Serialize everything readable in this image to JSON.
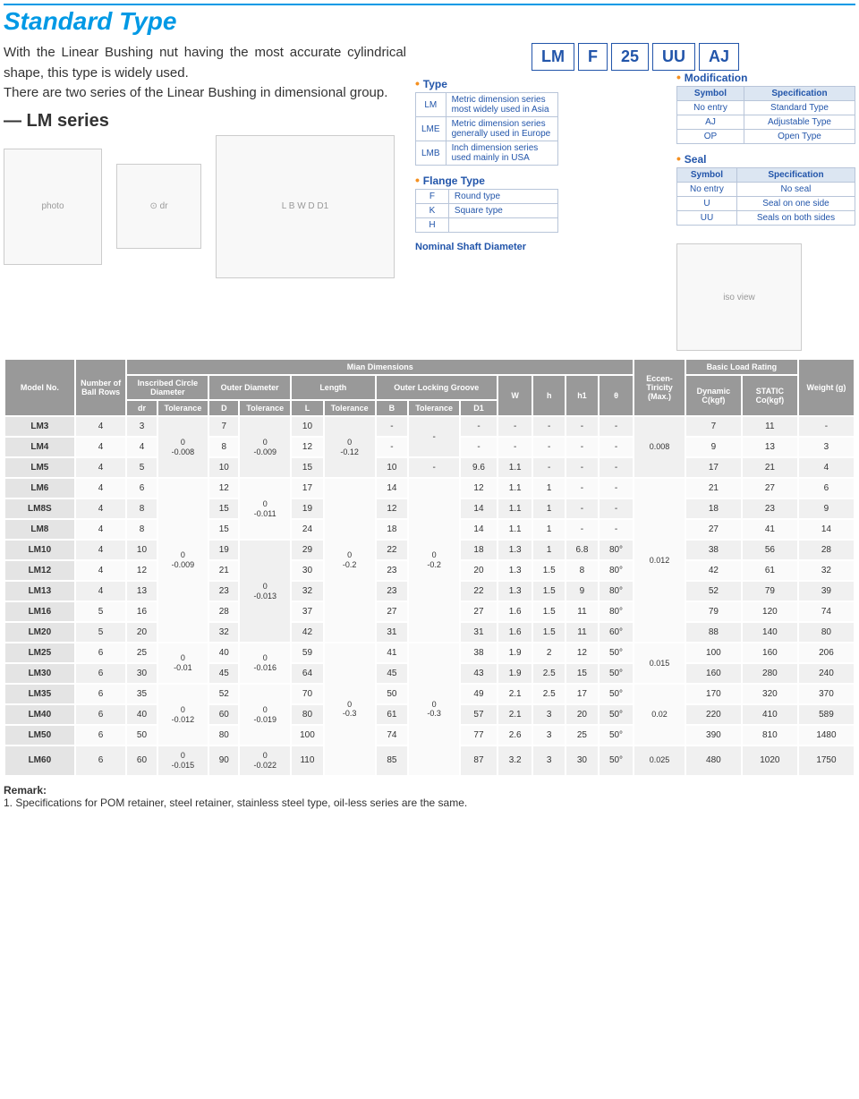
{
  "title": "Standard Type",
  "intro_p1": "With the Linear Bushing nut having the most accurate cylindrical shape, this type is widely used.",
  "intro_p2": "There are two series of the Linear Bushing in dimensional group.",
  "series_label": "— LM series",
  "code_parts": [
    "LM",
    "F",
    "25",
    "UU",
    "AJ"
  ],
  "type_legend": {
    "title": "Type",
    "rows": [
      [
        "LM",
        "Metric dimension series most widely used in Asia"
      ],
      [
        "LME",
        "Metric dimension series generally used in Europe"
      ],
      [
        "LMB",
        "Inch dimension series used mainly in USA"
      ]
    ]
  },
  "flange_legend": {
    "title": "Flange Type",
    "rows": [
      [
        "F",
        "Round type"
      ],
      [
        "K",
        "Square type"
      ],
      [
        "H",
        ""
      ]
    ]
  },
  "nominal_label": "Nominal Shaft Diameter",
  "mod_legend": {
    "title": "Modification",
    "cols": [
      "Symbol",
      "Specification"
    ],
    "rows": [
      [
        "No entry",
        "Standard Type"
      ],
      [
        "AJ",
        "Adjustable Type"
      ],
      [
        "OP",
        "Open Type"
      ]
    ]
  },
  "seal_legend": {
    "title": "Seal",
    "cols": [
      "Symbol",
      "Specification"
    ],
    "rows": [
      [
        "No entry",
        "No seal"
      ],
      [
        "U",
        "Seal on one side"
      ],
      [
        "UU",
        "Seals on both sides"
      ]
    ]
  },
  "spec_headers": {
    "model": "Model No.",
    "rows": "Number of Ball Rows",
    "main": "Mian Dimensions",
    "inscribed": "Inscribed Circle Diameter",
    "outer_d": "Outer Diameter",
    "length": "Length",
    "groove": "Outer Locking Groove",
    "dr": "dr",
    "tol": "Tolerance",
    "D": "D",
    "L": "L",
    "B": "B",
    "D1": "D1",
    "W": "W",
    "h": "h",
    "h1": "h1",
    "theta": "θ",
    "ecc": "Eccen-Tiricity (Max.)",
    "load": "Basic Load Rating",
    "dyn": "Dynamic C(kgf)",
    "stat": "STATIC Co(kgf)",
    "weight": "Weight (g)"
  },
  "tolerances": {
    "dr_1": "0\n-0.008",
    "dr_2": "0\n-0.009",
    "dr_3": "0\n-0.01",
    "dr_4": "0\n-0.012",
    "dr_5": "0\n-0.015",
    "D_1": "0\n-0.009",
    "D_2": "0\n-0.011",
    "D_3": "0\n-0.013",
    "D_4": "0\n-0.016",
    "D_5": "0\n-0.019",
    "D_6": "0\n-0.022",
    "L_1": "0\n-0.12",
    "L_2": "0\n-0.2",
    "L_3": "0\n-0.3",
    "B_1": "0\n-0.2",
    "B_2": "0\n-0.3",
    "ecc_1": "0.008",
    "ecc_2": "0.012",
    "ecc_3": "0.015",
    "ecc_4": "0.02",
    "ecc_5": "0.025"
  },
  "spec_rows": [
    {
      "model": "LM3",
      "balls": "4",
      "dr": "3",
      "D": "7",
      "L": "10",
      "B": "-",
      "D1": "-",
      "W": "-",
      "h": "-",
      "h1": "-",
      "theta": "-",
      "dyn": "7",
      "stat": "11",
      "wt": "-"
    },
    {
      "model": "LM4",
      "balls": "4",
      "dr": "4",
      "D": "8",
      "L": "12",
      "B": "-",
      "D1": "-",
      "W": "-",
      "h": "-",
      "h1": "-",
      "theta": "-",
      "dyn": "9",
      "stat": "13",
      "wt": "3"
    },
    {
      "model": "LM5",
      "balls": "4",
      "dr": "5",
      "D": "10",
      "L": "15",
      "B": "10",
      "D1": "9.6",
      "W": "1.1",
      "h": "-",
      "h1": "-",
      "theta": "-",
      "dyn": "17",
      "stat": "21",
      "wt": "4"
    },
    {
      "model": "LM6",
      "balls": "4",
      "dr": "6",
      "D": "12",
      "L": "17",
      "B": "14",
      "D1": "12",
      "W": "1.1",
      "h": "1",
      "h1": "-",
      "theta": "-",
      "dyn": "21",
      "stat": "27",
      "wt": "6"
    },
    {
      "model": "LM8S",
      "balls": "4",
      "dr": "8",
      "D": "15",
      "L": "19",
      "B": "12",
      "D1": "14",
      "W": "1.1",
      "h": "1",
      "h1": "-",
      "theta": "-",
      "dyn": "18",
      "stat": "23",
      "wt": "9"
    },
    {
      "model": "LM8",
      "balls": "4",
      "dr": "8",
      "D": "15",
      "L": "24",
      "B": "18",
      "D1": "14",
      "W": "1.1",
      "h": "1",
      "h1": "-",
      "theta": "-",
      "dyn": "27",
      "stat": "41",
      "wt": "14"
    },
    {
      "model": "LM10",
      "balls": "4",
      "dr": "10",
      "D": "19",
      "L": "29",
      "B": "22",
      "D1": "18",
      "W": "1.3",
      "h": "1",
      "h1": "6.8",
      "theta": "80°",
      "dyn": "38",
      "stat": "56",
      "wt": "28"
    },
    {
      "model": "LM12",
      "balls": "4",
      "dr": "12",
      "D": "21",
      "L": "30",
      "B": "23",
      "D1": "20",
      "W": "1.3",
      "h": "1.5",
      "h1": "8",
      "theta": "80°",
      "dyn": "42",
      "stat": "61",
      "wt": "32"
    },
    {
      "model": "LM13",
      "balls": "4",
      "dr": "13",
      "D": "23",
      "L": "32",
      "B": "23",
      "D1": "22",
      "W": "1.3",
      "h": "1.5",
      "h1": "9",
      "theta": "80°",
      "dyn": "52",
      "stat": "79",
      "wt": "39"
    },
    {
      "model": "LM16",
      "balls": "5",
      "dr": "16",
      "D": "28",
      "L": "37",
      "B": "27",
      "D1": "27",
      "W": "1.6",
      "h": "1.5",
      "h1": "11",
      "theta": "80°",
      "dyn": "79",
      "stat": "120",
      "wt": "74"
    },
    {
      "model": "LM20",
      "balls": "5",
      "dr": "20",
      "D": "32",
      "L": "42",
      "B": "31",
      "D1": "31",
      "W": "1.6",
      "h": "1.5",
      "h1": "11",
      "theta": "60°",
      "dyn": "88",
      "stat": "140",
      "wt": "80"
    },
    {
      "model": "LM25",
      "balls": "6",
      "dr": "25",
      "D": "40",
      "L": "59",
      "B": "41",
      "D1": "38",
      "W": "1.9",
      "h": "2",
      "h1": "12",
      "theta": "50°",
      "dyn": "100",
      "stat": "160",
      "wt": "206"
    },
    {
      "model": "LM30",
      "balls": "6",
      "dr": "30",
      "D": "45",
      "L": "64",
      "B": "45",
      "D1": "43",
      "W": "1.9",
      "h": "2.5",
      "h1": "15",
      "theta": "50°",
      "dyn": "160",
      "stat": "280",
      "wt": "240"
    },
    {
      "model": "LM35",
      "balls": "6",
      "dr": "35",
      "D": "52",
      "L": "70",
      "B": "50",
      "D1": "49",
      "W": "2.1",
      "h": "2.5",
      "h1": "17",
      "theta": "50°",
      "dyn": "170",
      "stat": "320",
      "wt": "370"
    },
    {
      "model": "LM40",
      "balls": "6",
      "dr": "40",
      "D": "60",
      "L": "80",
      "B": "61",
      "D1": "57",
      "W": "2.1",
      "h": "3",
      "h1": "20",
      "theta": "50°",
      "dyn": "220",
      "stat": "410",
      "wt": "589"
    },
    {
      "model": "LM50",
      "balls": "6",
      "dr": "50",
      "D": "80",
      "L": "100",
      "B": "74",
      "D1": "77",
      "W": "2.6",
      "h": "3",
      "h1": "25",
      "theta": "50°",
      "dyn": "390",
      "stat": "810",
      "wt": "1480"
    },
    {
      "model": "LM60",
      "balls": "6",
      "dr": "60",
      "D": "90",
      "L": "110",
      "B": "85",
      "D1": "87",
      "W": "3.2",
      "h": "3",
      "h1": "30",
      "theta": "50°",
      "dyn": "480",
      "stat": "1020",
      "wt": "1750"
    }
  ],
  "remark_title": "Remark:",
  "remark_1": "1. Specifications for POM retainer, steel retainer, stainless steel type, oil-less series are the same."
}
